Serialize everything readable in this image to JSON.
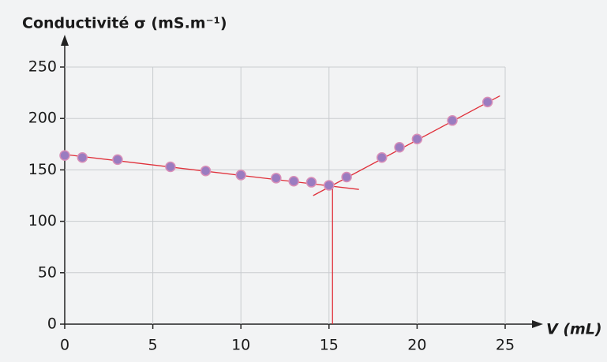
{
  "chart_data": {
    "type": "scatter",
    "title": "Conductivité σ (mS.m⁻¹)",
    "x_label": "V (mL)",
    "x": [
      0,
      1,
      3,
      6,
      8,
      10,
      12,
      13,
      14,
      15,
      16,
      18,
      19,
      20,
      22,
      24
    ],
    "values": [
      164,
      162,
      160,
      153,
      149,
      145,
      142,
      139,
      138,
      135,
      143,
      162,
      172,
      180,
      198,
      216
    ],
    "color": "#9a7cc0",
    "xlim": [
      0,
      25
    ],
    "xticks": [
      0,
      5,
      10,
      15,
      20,
      25
    ],
    "ylim": [
      0,
      250
    ],
    "yticks": [
      0,
      50,
      100,
      150,
      200,
      250
    ],
    "grid": true,
    "fit_lines": [
      {
        "x": [
          0,
          16.7
        ],
        "y": [
          165,
          131
        ]
      },
      {
        "x": [
          14.1,
          24.7
        ],
        "y": [
          125,
          222
        ]
      }
    ],
    "vertical_marker": {
      "x": 15.2,
      "y": 135
    },
    "line_color": "#e0303a"
  }
}
